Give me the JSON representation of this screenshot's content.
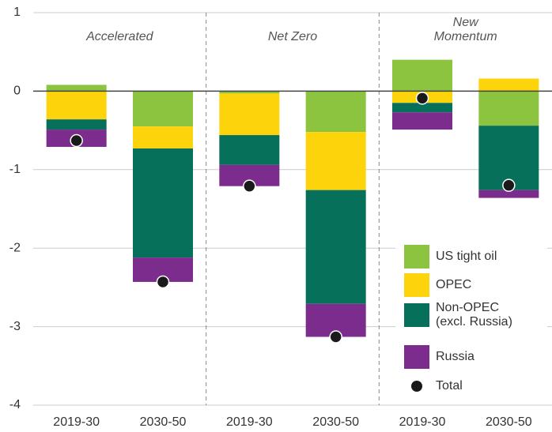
{
  "chart_data": {
    "type": "bar",
    "stacked": true,
    "groups": [
      "Accelerated",
      "Net Zero",
      "New\nMomentum"
    ],
    "categories": [
      "2019-30",
      "2030-50",
      "2019-30",
      "2030-50",
      "2019-30",
      "2030-50"
    ],
    "series": [
      {
        "name": "US tight oil",
        "color": "#8cc43f",
        "values": [
          0.08,
          -0.45,
          -0.03,
          -0.52,
          0.4,
          -0.44
        ]
      },
      {
        "name": "OPEC",
        "color": "#fdd40b",
        "values": [
          -0.36,
          -0.28,
          -0.53,
          -0.74,
          -0.15,
          0.16
        ]
      },
      {
        "name": "Non-OPEC\n(excl. Russia)",
        "color": "#07705a",
        "values": [
          -0.13,
          -1.39,
          -0.38,
          -1.45,
          -0.12,
          -0.82
        ]
      },
      {
        "name": "Russia",
        "color": "#7b2c8c",
        "values": [
          -0.22,
          -0.31,
          -0.27,
          -0.42,
          -0.22,
          -0.1
        ]
      }
    ],
    "total": {
      "name": "Total",
      "color": "#1a1a1a",
      "values": [
        -0.63,
        -2.43,
        -1.21,
        -3.13,
        -0.09,
        -1.2
      ]
    },
    "ylim": [
      -4,
      1
    ],
    "yticks": [
      -4,
      -3,
      -2,
      -1,
      0,
      1
    ],
    "grid": true
  }
}
